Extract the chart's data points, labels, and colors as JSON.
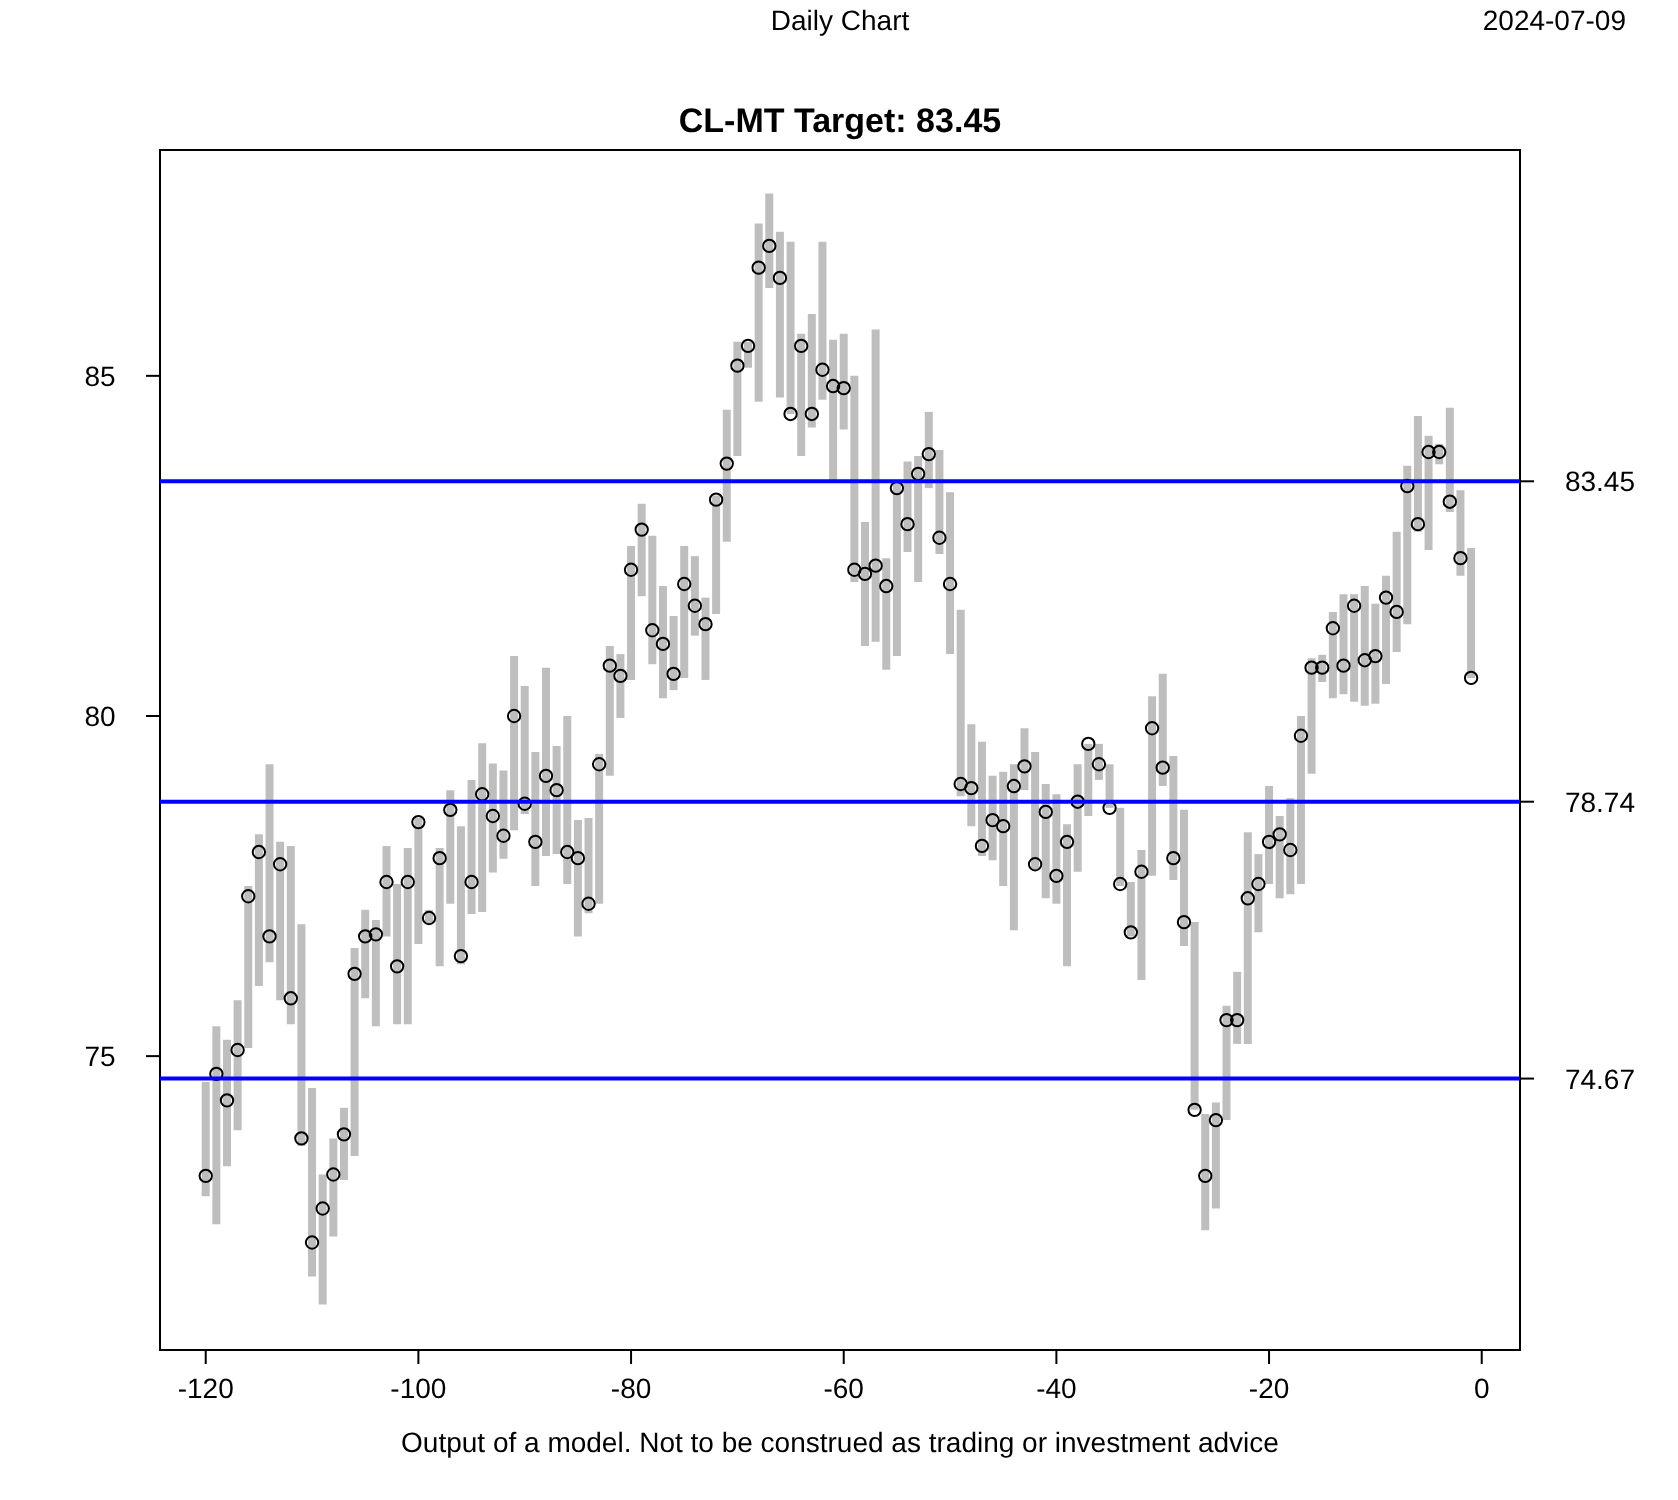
{
  "chart_data": {
    "type": "scatter",
    "title": "CL-MT Target: 83.45",
    "annotations": [
      "Daily Chart",
      "2024-07-09",
      "Output of a model. Not to be construed as trading or investment advice"
    ],
    "xlim": [
      -124.3,
      3.6
    ],
    "xticks": [
      -120,
      -100,
      -80,
      -60,
      -40,
      -20,
      0
    ],
    "ylim": [
      70.68,
      88.32
    ],
    "yticks": [
      75,
      80,
      85
    ],
    "marker": "circle",
    "ref_lines": [
      {
        "axis": "y",
        "value": 83.45,
        "label": "83.45",
        "color": "#0000ff"
      },
      {
        "axis": "y",
        "value": 78.74,
        "label": "78.74",
        "color": "#0000ff"
      },
      {
        "axis": "y",
        "value": 74.67,
        "label": "74.67",
        "color": "#0000ff"
      }
    ],
    "series": [
      {
        "color": "#000000",
        "x": [
          -120,
          -119,
          -118,
          -117,
          -116,
          -115,
          -114,
          -113,
          -112,
          -111,
          -110,
          -109,
          -108,
          -107,
          -106,
          -105,
          -104,
          -103,
          -102,
          -101,
          -100,
          -99,
          -98,
          -97,
          -96,
          -95,
          -94,
          -93,
          -92,
          -91,
          -90,
          -89,
          -88,
          -87,
          -86,
          -85,
          -84,
          -83,
          -82,
          -81,
          -80,
          -79,
          -78,
          -77,
          -76,
          -75,
          -74,
          -73,
          -72,
          -71,
          -70,
          -69,
          -68,
          -67,
          -66,
          -65,
          -64,
          -63,
          -62,
          -61,
          -60,
          -59,
          -58,
          -57,
          -56,
          -55,
          -54,
          -53,
          -52,
          -51,
          -50,
          -49,
          -48,
          -47,
          -46,
          -45,
          -44,
          -43,
          -42,
          -41,
          -40,
          -39,
          -38,
          -37,
          -36,
          -35,
          -34,
          -33,
          -32,
          -31,
          -30,
          -29,
          -28,
          -27,
          -26,
          -25,
          -24,
          -23,
          -22,
          -21,
          -20,
          -19,
          -18,
          -17,
          -16,
          -15,
          -14,
          -13,
          -12,
          -11,
          -10,
          -9,
          -8,
          -7,
          -6,
          -5,
          -4,
          -3,
          -2,
          -1
        ],
        "values": [
          73.24,
          74.74,
          74.35,
          75.09,
          77.35,
          78.0,
          76.76,
          77.82,
          75.85,
          73.79,
          72.26,
          72.76,
          73.26,
          73.85,
          76.21,
          76.76,
          76.79,
          77.56,
          76.32,
          77.56,
          78.44,
          77.03,
          77.91,
          78.62,
          76.47,
          77.56,
          78.85,
          78.53,
          78.24,
          80.0,
          78.71,
          78.15,
          79.12,
          78.91,
          78.0,
          77.91,
          77.24,
          79.29,
          80.74,
          80.59,
          82.15,
          82.74,
          81.26,
          81.06,
          80.62,
          81.94,
          81.62,
          81.35,
          83.18,
          83.71,
          85.15,
          85.44,
          86.59,
          86.91,
          86.44,
          84.44,
          85.44,
          84.44,
          85.09,
          84.85,
          84.82,
          82.15,
          82.09,
          82.21,
          81.91,
          83.35,
          82.82,
          83.56,
          83.85,
          82.62,
          81.94,
          79.0,
          78.94,
          78.09,
          78.47,
          78.38,
          78.97,
          79.26,
          77.82,
          78.59,
          77.65,
          78.15,
          78.74,
          79.59,
          79.29,
          78.65,
          77.53,
          76.82,
          77.71,
          79.82,
          79.24,
          77.91,
          76.97,
          74.21,
          73.24,
          74.06,
          75.53,
          75.53,
          77.32,
          77.53,
          78.15,
          78.26,
          78.03,
          79.71,
          80.71,
          80.71,
          81.29,
          80.74,
          81.62,
          80.82,
          80.88,
          81.74,
          81.53,
          83.38,
          82.82,
          83.88,
          83.88,
          83.15,
          82.32,
          80.56
        ],
        "errors": [
          [
            72.94,
            74.62
          ],
          [
            72.53,
            75.44
          ],
          [
            73.38,
            75.24
          ],
          [
            73.91,
            75.82
          ],
          [
            75.12,
            77.5
          ],
          [
            76.03,
            78.26
          ],
          [
            76.38,
            79.29
          ],
          [
            75.82,
            78.15
          ],
          [
            75.47,
            78.09
          ],
          [
            73.68,
            76.94
          ],
          [
            71.76,
            74.53
          ],
          [
            71.35,
            73.26
          ],
          [
            72.35,
            73.79
          ],
          [
            73.18,
            74.24
          ],
          [
            73.53,
            76.59
          ],
          [
            75.85,
            77.15
          ],
          [
            75.44,
            77.0
          ],
          [
            76.76,
            78.09
          ],
          [
            75.47,
            77.53
          ],
          [
            75.47,
            78.06
          ],
          [
            76.65,
            78.5
          ],
          [
            76.94,
            77.15
          ],
          [
            76.32,
            78.06
          ],
          [
            77.24,
            78.91
          ],
          [
            76.35,
            78.38
          ],
          [
            77.09,
            79.06
          ],
          [
            77.12,
            79.6
          ],
          [
            77.7,
            79.3
          ],
          [
            77.9,
            79.2
          ],
          [
            78.32,
            80.88
          ],
          [
            78.56,
            80.44
          ],
          [
            77.5,
            79.47
          ],
          [
            77.94,
            80.71
          ],
          [
            77.97,
            79.56
          ],
          [
            77.53,
            80.0
          ],
          [
            76.76,
            78.47
          ],
          [
            77.1,
            78.5
          ],
          [
            77.24,
            79.44
          ],
          [
            79.12,
            81.03
          ],
          [
            79.97,
            80.91
          ],
          [
            80.53,
            82.5
          ],
          [
            81.76,
            83.12
          ],
          [
            80.76,
            82.65
          ],
          [
            80.26,
            81.91
          ],
          [
            80.38,
            81.47
          ],
          [
            80.56,
            82.5
          ],
          [
            81.18,
            82.35
          ],
          [
            80.53,
            81.74
          ],
          [
            81.5,
            83.24
          ],
          [
            82.56,
            84.5
          ],
          [
            83.82,
            85.5
          ],
          [
            85.12,
            85.5
          ],
          [
            84.62,
            87.24
          ],
          [
            86.29,
            87.68
          ],
          [
            84.68,
            87.12
          ],
          [
            84.44,
            86.97
          ],
          [
            83.82,
            85.62
          ],
          [
            84.24,
            85.91
          ],
          [
            84.65,
            86.97
          ],
          [
            83.47,
            85.53
          ],
          [
            84.21,
            85.62
          ],
          [
            81.97,
            85.0
          ],
          [
            81.03,
            82.85
          ],
          [
            81.09,
            85.68
          ],
          [
            80.68,
            82.32
          ],
          [
            80.88,
            83.47
          ],
          [
            82.41,
            83.74
          ],
          [
            81.97,
            83.82
          ],
          [
            83.35,
            84.47
          ],
          [
            82.38,
            83.91
          ],
          [
            80.91,
            83.29
          ],
          [
            78.82,
            81.56
          ],
          [
            78.38,
            79.88
          ],
          [
            77.94,
            79.62
          ],
          [
            77.88,
            79.12
          ],
          [
            77.5,
            79.18
          ],
          [
            76.85,
            79.29
          ],
          [
            78.91,
            79.82
          ],
          [
            77.74,
            79.47
          ],
          [
            77.32,
            79.0
          ],
          [
            77.24,
            78.85
          ],
          [
            76.32,
            78.41
          ],
          [
            77.71,
            79.29
          ],
          [
            78.53,
            79.59
          ],
          [
            79.06,
            79.59
          ],
          [
            78.65,
            79.29
          ],
          [
            77.5,
            78.65
          ],
          [
            76.76,
            77.56
          ],
          [
            76.12,
            78.03
          ],
          [
            77.65,
            80.29
          ],
          [
            78.97,
            80.62
          ],
          [
            77.59,
            79.41
          ],
          [
            76.62,
            78.62
          ],
          [
            74.21,
            76.97
          ],
          [
            72.44,
            74.15
          ],
          [
            72.76,
            74.32
          ],
          [
            74.06,
            75.74
          ],
          [
            75.18,
            76.24
          ],
          [
            75.18,
            78.29
          ],
          [
            76.82,
            77.97
          ],
          [
            77.53,
            78.97
          ],
          [
            77.32,
            78.53
          ],
          [
            77.38,
            78.79
          ],
          [
            77.53,
            80.0
          ],
          [
            79.15,
            80.85
          ],
          [
            80.5,
            80.9
          ],
          [
            80.26,
            81.53
          ],
          [
            80.32,
            81.79
          ],
          [
            80.21,
            81.79
          ],
          [
            80.15,
            81.91
          ],
          [
            80.18,
            81.65
          ],
          [
            80.47,
            82.06
          ],
          [
            80.94,
            82.71
          ],
          [
            81.35,
            83.68
          ],
          [
            82.71,
            84.41
          ],
          [
            82.44,
            84.12
          ],
          [
            83.7,
            84.0
          ],
          [
            83.0,
            84.53
          ],
          [
            82.06,
            83.32
          ],
          [
            80.56,
            82.47
          ]
        ]
      }
    ]
  }
}
